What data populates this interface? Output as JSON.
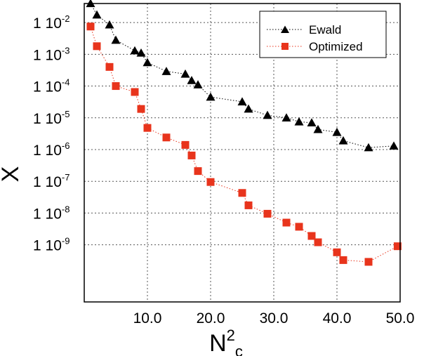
{
  "chart_data": {
    "type": "scatter",
    "xlabel": "N",
    "xlabel_sup": "2",
    "xlabel_sub": "c",
    "ylabel": "X",
    "xlim": [
      0,
      50
    ],
    "ylim_log10": [
      -10.8,
      -1.4
    ],
    "y_scale": "log",
    "grid": true,
    "grid_style": "dotted",
    "legend_position": "top-right",
    "x_ticks": [
      {
        "value": 10,
        "label": "10.0"
      },
      {
        "value": 20,
        "label": "20.0"
      },
      {
        "value": 30,
        "label": "30.0"
      },
      {
        "value": 40,
        "label": "40.0"
      },
      {
        "value": 50,
        "label": "50.0"
      }
    ],
    "y_ticks": [
      {
        "exp": -2,
        "mantissa": "1 10",
        "sup": "-2"
      },
      {
        "exp": -3,
        "mantissa": "1 10",
        "sup": "-3"
      },
      {
        "exp": -4,
        "mantissa": "1 10",
        "sup": "-4"
      },
      {
        "exp": -5,
        "mantissa": "1 10",
        "sup": "-5"
      },
      {
        "exp": -6,
        "mantissa": "1 10",
        "sup": "-6"
      },
      {
        "exp": -7,
        "mantissa": "1 10",
        "sup": "-7"
      },
      {
        "exp": -8,
        "mantissa": "1 10",
        "sup": "-8"
      },
      {
        "exp": -9,
        "mantissa": "1 10",
        "sup": "-9"
      }
    ],
    "series": [
      {
        "name": "Ewald",
        "marker": "triangle",
        "color": "#000000",
        "points": [
          [
            1,
            0.04
          ],
          [
            2,
            0.0175
          ],
          [
            4,
            0.0085
          ],
          [
            5,
            0.0028
          ],
          [
            8,
            0.0013
          ],
          [
            9,
            0.0011
          ],
          [
            10,
            0.00055
          ],
          [
            13,
            0.00029
          ],
          [
            16,
            0.00024
          ],
          [
            17,
            0.00015
          ],
          [
            18,
            0.00011
          ],
          [
            20,
            4.5e-05
          ],
          [
            25,
            3.2e-05
          ],
          [
            26,
            1.9e-05
          ],
          [
            29,
            1.2e-05
          ],
          [
            32,
            1e-05
          ],
          [
            34,
            7.5e-06
          ],
          [
            36,
            7e-06
          ],
          [
            37,
            4.3e-06
          ],
          [
            40,
            3.5e-06
          ],
          [
            41,
            1.9e-06
          ],
          [
            45,
            1.15e-06
          ],
          [
            49,
            1.3e-06
          ]
        ]
      },
      {
        "name": "Optimized",
        "marker": "square",
        "color": "#e8341c",
        "points": [
          [
            1,
            0.0075
          ],
          [
            2,
            0.0018
          ],
          [
            4,
            0.0004
          ],
          [
            5,
            0.0001
          ],
          [
            8,
            6.5e-05
          ],
          [
            9,
            1.9e-05
          ],
          [
            10,
            4.8e-06
          ],
          [
            13,
            2.4e-06
          ],
          [
            16,
            1.4e-06
          ],
          [
            17,
            6.5e-07
          ],
          [
            18,
            2.1e-07
          ],
          [
            20,
            9.5e-08
          ],
          [
            25,
            4.3e-08
          ],
          [
            26,
            1.75e-08
          ],
          [
            29,
            9.5e-09
          ],
          [
            32,
            5e-09
          ],
          [
            34,
            3.7e-09
          ],
          [
            36,
            1.9e-09
          ],
          [
            37,
            1.2e-09
          ],
          [
            40,
            5.8e-10
          ],
          [
            41,
            3.3e-10
          ],
          [
            45,
            2.9e-10
          ],
          [
            49.6,
            9e-10
          ]
        ]
      }
    ]
  }
}
